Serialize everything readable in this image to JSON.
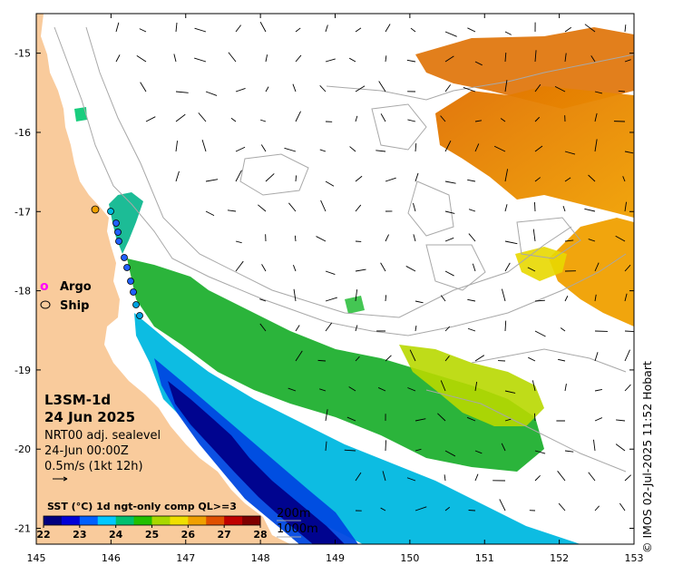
{
  "map": {
    "x_ticks": [
      "145",
      "146",
      "147",
      "148",
      "149",
      "150",
      "151",
      "152",
      "153"
    ],
    "y_ticks": [
      "-15",
      "-16",
      "-17",
      "-18",
      "-19",
      "-20",
      "-21"
    ],
    "lon_range": [
      145,
      153
    ],
    "lat_range": [
      -21.2,
      -14.5
    ],
    "land_color": "#f9cb9c",
    "contour_color": "#a8a8a8"
  },
  "legend": {
    "argo_symbol": "o",
    "argo_label": "Argo",
    "ship_label": "Ship"
  },
  "product": {
    "title": "L3SM-1d",
    "date": "24 Jun 2025",
    "vector_source": "NRT00 adj. sealevel",
    "vector_time": "24-Jun 00:00Z",
    "vector_scale": "0.5m/s (1kt 12h)"
  },
  "colorbar": {
    "title": "SST (°C) 1d ngt-only comp QL>=3",
    "ticks": [
      "22",
      "23",
      "24",
      "25",
      "26",
      "27",
      "28"
    ],
    "range": [
      22,
      28
    ],
    "colors": [
      "#00007f",
      "#0000d8",
      "#0060ff",
      "#00c8ff",
      "#00c070",
      "#22c000",
      "#a8d800",
      "#f0e000",
      "#f0a000",
      "#e05000",
      "#c00000",
      "#7f0000"
    ]
  },
  "contours": {
    "label_200": "200m",
    "label_1000": "1000m"
  },
  "copyright": "© IMOS 02-Jul-2025 11:52 Hobart"
}
